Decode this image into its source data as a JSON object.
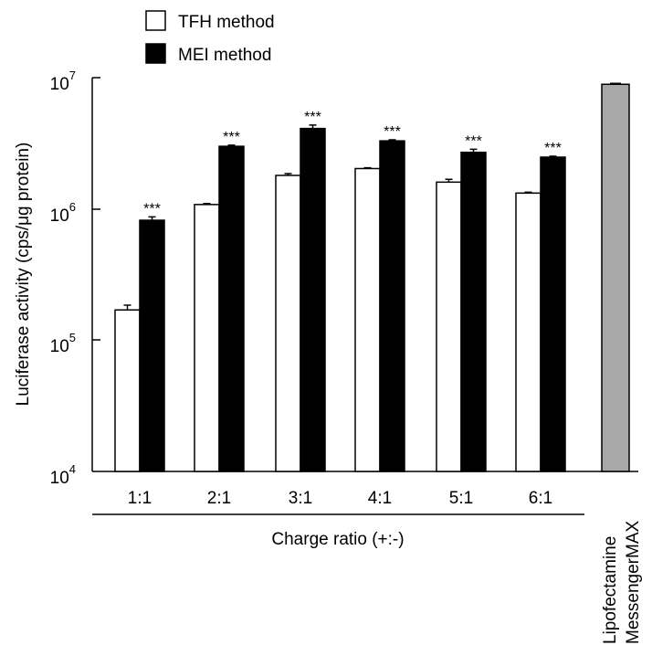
{
  "chart_data": {
    "type": "bar",
    "yscale": "log",
    "ylim": [
      10000,
      10000000
    ],
    "ylabel": "Luciferase activity (cps/μg protein)",
    "yticks": [
      {
        "value": 10000,
        "base": "10",
        "exp": "4"
      },
      {
        "value": 100000,
        "base": "10",
        "exp": "5"
      },
      {
        "value": 1000000,
        "base": "10",
        "exp": "6"
      },
      {
        "value": 10000000,
        "base": "10",
        "exp": "7"
      }
    ],
    "xlabel": "Charge ratio (+:-)",
    "categories": [
      "1:1",
      "2:1",
      "3:1",
      "4:1",
      "5:1",
      "6:1"
    ],
    "series": [
      {
        "name": "TFH method",
        "color": "#ffffff",
        "values": [
          170000,
          1080000,
          1800000,
          2030000,
          1600000,
          1320000
        ],
        "errors": [
          15000,
          20000,
          60000,
          30000,
          80000,
          20000
        ]
      },
      {
        "name": "MEI method",
        "color": "#000000",
        "values": [
          820000,
          3000000,
          4100000,
          3300000,
          2700000,
          2480000
        ],
        "errors": [
          50000,
          60000,
          250000,
          60000,
          150000,
          40000
        ],
        "annotations": [
          "***",
          "***",
          "***",
          "***",
          "***",
          "***"
        ]
      }
    ],
    "control": {
      "label_lines": [
        "Lipofectamine",
        "MessengerMAX"
      ],
      "value": 8900000,
      "error": 150000,
      "color": "#a8a8a8"
    },
    "legend": {
      "position": "top-left"
    },
    "grid": false
  }
}
